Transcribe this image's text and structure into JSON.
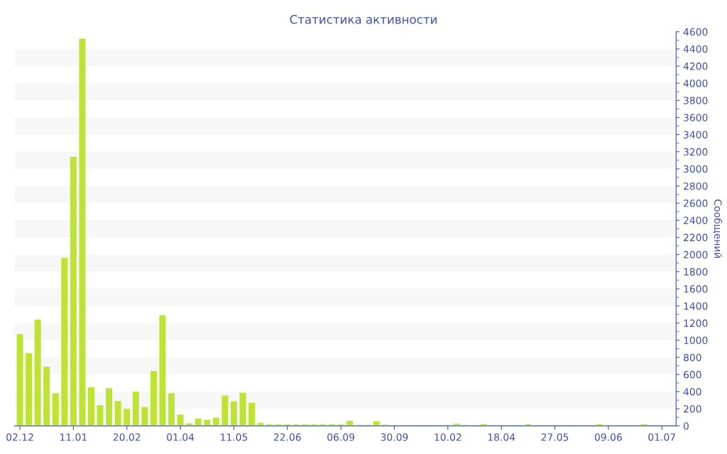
{
  "chart_data": {
    "type": "bar",
    "title": "Статистика активности",
    "ylabel": "Сообщений",
    "categories": [
      "02.12",
      null,
      null,
      null,
      null,
      null,
      "11.01",
      null,
      null,
      null,
      null,
      null,
      "20.02",
      null,
      null,
      null,
      null,
      null,
      "01.04",
      null,
      null,
      null,
      null,
      null,
      "11.05",
      null,
      null,
      null,
      null,
      null,
      "22.06",
      null,
      null,
      null,
      null,
      null,
      "06.09",
      null,
      null,
      null,
      null,
      null,
      "30.09",
      null,
      null,
      null,
      null,
      null,
      "10.02",
      null,
      null,
      null,
      null,
      null,
      "18.04",
      null,
      null,
      null,
      null,
      null,
      "27.05",
      null,
      null,
      null,
      null,
      null,
      "09.06",
      null,
      null,
      null,
      null,
      null,
      "01.07",
      null
    ],
    "series": [
      {
        "color": "#bde333",
        "values": [
          1070,
          850,
          1240,
          690,
          380,
          1960,
          3140,
          4520,
          450,
          240,
          440,
          290,
          200,
          400,
          220,
          640,
          1290,
          380,
          130,
          30,
          85,
          70,
          95,
          355,
          285,
          385,
          270,
          33,
          17,
          17,
          17,
          17,
          17,
          17,
          17,
          17,
          17,
          58,
          12,
          12,
          55,
          15,
          10,
          10,
          10,
          10,
          10,
          10,
          12,
          25,
          12,
          10,
          20,
          10,
          10,
          10,
          10,
          20,
          10,
          10,
          10,
          10,
          10,
          10,
          10,
          20,
          10,
          10,
          10,
          10,
          20,
          10,
          10,
          10
        ]
      }
    ],
    "ylim": [
      0,
      4600
    ],
    "yticks": [
      0,
      {
        "value": 100,
        "label": null
      },
      200,
      {
        "value": 300,
        "label": null
      },
      400,
      {
        "value": 500,
        "label": null
      },
      600,
      {
        "value": 700,
        "label": null
      },
      800,
      {
        "value": 900,
        "label": null
      },
      1000,
      {
        "value": 1100,
        "label": null
      },
      1200,
      {
        "value": 1300,
        "label": null
      },
      1400,
      {
        "value": 1500,
        "label": null
      },
      1600,
      {
        "value": 1700,
        "label": null
      },
      1800,
      {
        "value": 1900,
        "label": null
      },
      2000,
      {
        "value": 2100,
        "label": null
      },
      2200,
      {
        "value": 2300,
        "label": null
      },
      2400,
      {
        "value": 2500,
        "label": null
      },
      2600,
      {
        "value": 2700,
        "label": null
      },
      2800,
      {
        "value": 2900,
        "label": null
      },
      3000,
      {
        "value": 3100,
        "label": null
      },
      3200,
      {
        "value": 3300,
        "label": null
      },
      3400,
      {
        "value": 3500,
        "label": null
      },
      3600,
      {
        "value": 3700,
        "label": null
      },
      3800,
      {
        "value": 3900,
        "label": null
      },
      4000,
      {
        "value": 4100,
        "label": null
      },
      4200,
      {
        "value": 4300,
        "label": null
      },
      4400,
      {
        "value": 4500,
        "label": null
      },
      4600
    ],
    "bands": [
      {
        "axis": "y",
        "from": 200,
        "to": 400,
        "color": "#f7f7f7"
      },
      {
        "axis": "y",
        "from": 600,
        "to": 800,
        "color": "#f7f7f7"
      },
      {
        "axis": "y",
        "from": 1000,
        "to": 1200,
        "color": "#f7f7f7"
      },
      {
        "axis": "y",
        "from": 1400,
        "to": 1600,
        "color": "#f7f7f7"
      },
      {
        "axis": "y",
        "from": 1800,
        "to": 2000,
        "color": "#f7f7f7"
      },
      {
        "axis": "y",
        "from": 2200,
        "to": 2400,
        "color": "#f7f7f7"
      },
      {
        "axis": "y",
        "from": 2600,
        "to": 2800,
        "color": "#f7f7f7"
      },
      {
        "axis": "y",
        "from": 3000,
        "to": 3200,
        "color": "#f7f7f7"
      },
      {
        "axis": "y",
        "from": 3400,
        "to": 3600,
        "color": "#f7f7f7"
      },
      {
        "axis": "y",
        "from": 3800,
        "to": 4000,
        "color": "#f7f7f7"
      },
      {
        "axis": "y",
        "from": 4200,
        "to": 4400,
        "color": "#f7f7f7"
      }
    ],
    "grid": false,
    "legend": false
  }
}
